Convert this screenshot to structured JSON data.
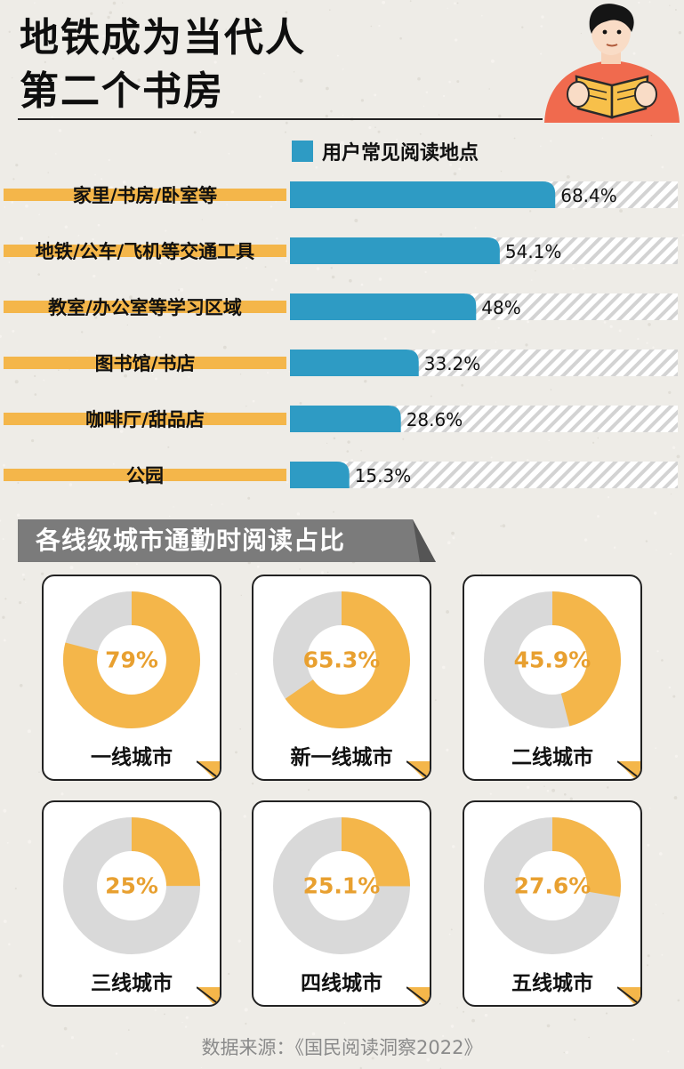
{
  "header": {
    "title_line1": "地铁成为当代人",
    "title_line2": "第二个书房"
  },
  "legend": {
    "label": "用户常见阅读地点"
  },
  "section": {
    "title": "各线级城市通勤时阅读占比"
  },
  "colors": {
    "bar": "#2e9bc4",
    "label_band": "#f4b64a",
    "donut_fill": "#f4b64a",
    "donut_track": "#d9d9d9",
    "percent_text": "#e8a030",
    "banner": "#7b7b7b"
  },
  "chart_data": [
    {
      "type": "bar",
      "orientation": "horizontal",
      "categories": [
        "家里/书房/卧室等",
        "地铁/公车/飞机等交通工具",
        "教室/办公室等学习区域",
        "图书馆/书店",
        "咖啡厅/甜品店",
        "公园"
      ],
      "series": [
        {
          "name": "用户常见阅读地点",
          "values": [
            68.4,
            54.1,
            48,
            33.2,
            28.6,
            15.3
          ]
        }
      ],
      "data_labels": [
        "68.4%",
        "54.1%",
        "48%",
        "33.2%",
        "28.6%",
        "15.3%"
      ],
      "xlim": [
        0,
        100
      ],
      "grid": false,
      "legend": "top"
    },
    {
      "type": "pie",
      "subtype": "donut",
      "title": "各线级城市通勤时阅读占比",
      "charts": [
        {
          "label": "一线城市",
          "value": 79,
          "display": "79%"
        },
        {
          "label": "新一线城市",
          "value": 65.3,
          "display": "65.3%"
        },
        {
          "label": "二线城市",
          "value": 45.9,
          "display": "45.9%"
        },
        {
          "label": "三线城市",
          "value": 25,
          "display": "25%"
        },
        {
          "label": "四线城市",
          "value": 25.1,
          "display": "25.1%"
        },
        {
          "label": "五线城市",
          "value": 27.6,
          "display": "27.6%"
        }
      ]
    }
  ],
  "footer": {
    "source": "数据来源：《国民阅读洞察2022》"
  }
}
